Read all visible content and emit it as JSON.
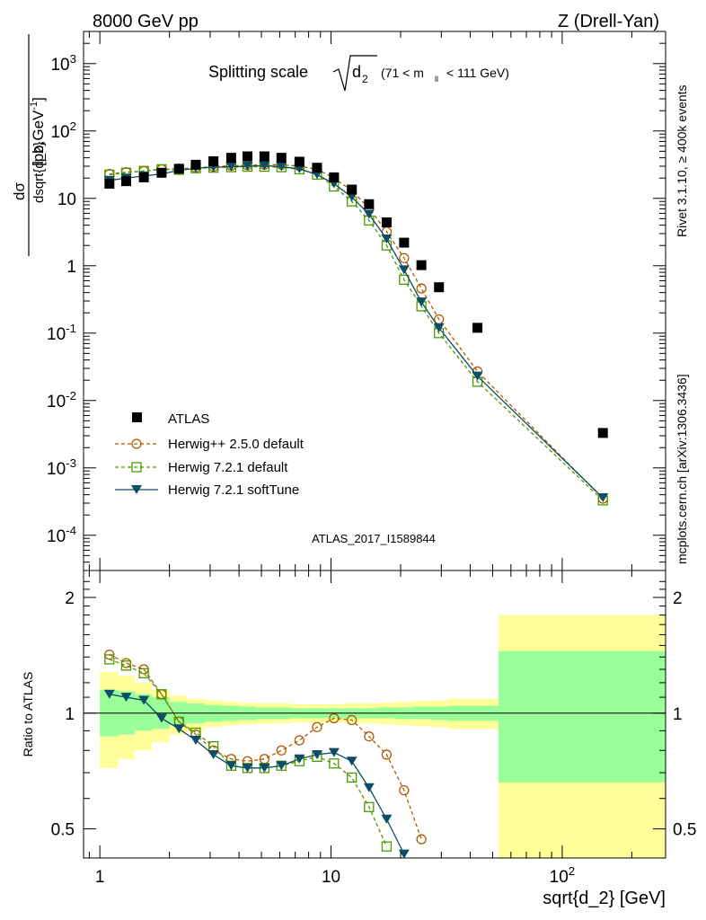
{
  "header": {
    "energy_label": "8000 GeV pp",
    "process_label": "Z (Drell-Yan)",
    "plot_title_prefix": "Splitting scale",
    "plot_title_symbol": "d",
    "plot_title_subscript": "2",
    "plot_title_cut": "(71 < m",
    "plot_title_cut_sub": "ll",
    "plot_title_cut_suffix": "< 111 GeV)",
    "side_label_rivet": "Rivet 3.1.10, ≥ 400k events",
    "side_label_mcplots": "mcplots.cern.ch [arXiv:1306.3436]",
    "analysis_id": "ATLAS_2017_I1589844"
  },
  "colors": {
    "atlas": "#000000",
    "herwigpp": "#b35900",
    "herwig721": "#4d9900",
    "softtune": "#0d4d66",
    "band_yellow": "#ffff99",
    "band_green": "#99ff99",
    "analysis_label": "#999999",
    "side_label": "#808080"
  },
  "legend": {
    "atlas": "ATLAS",
    "herwigpp": "Herwig++ 2.5.0 default",
    "herwig721": "Herwig 7.2.1 default",
    "softtune": "Herwig 7.2.1 softTune"
  },
  "chart_data": [
    {
      "type": "scatter",
      "scale": "log-log",
      "ylabel": "dσ / dsqrt{d_2} [pb,GeV^-1]",
      "xlim": [
        0.85,
        280
      ],
      "ylim": [
        3e-05,
        3000
      ],
      "y_ticks": [
        {
          "v": 0.0001,
          "label": "10^-4"
        },
        {
          "v": 0.001,
          "label": "10^-3"
        },
        {
          "v": 0.01,
          "label": "10^-2"
        },
        {
          "v": 0.1,
          "label": "10^-1"
        },
        {
          "v": 1,
          "label": "1"
        },
        {
          "v": 10,
          "label": "10"
        },
        {
          "v": 100,
          "label": "10^2"
        },
        {
          "v": 1000,
          "label": "10^3"
        }
      ],
      "x": [
        1.1,
        1.3,
        1.55,
        1.85,
        2.2,
        2.6,
        3.1,
        3.7,
        4.35,
        5.15,
        6.1,
        7.3,
        8.7,
        10.3,
        12.3,
        14.6,
        17.4,
        20.7,
        24.6,
        29.3,
        43.0,
        150.0
      ],
      "series": [
        {
          "name": "ATLAS",
          "values": [
            16.5,
            18,
            20.5,
            24,
            27.5,
            31.5,
            35.5,
            40,
            42,
            42,
            40,
            35,
            28.5,
            20.5,
            13.5,
            8.2,
            4.4,
            2.2,
            1.02,
            0.48,
            0.12,
            0.0033
          ]
        },
        {
          "name": "Herwig++ 2.5.0 default",
          "values": [
            23,
            24.5,
            25.5,
            27,
            27.5,
            28.5,
            29.5,
            30.5,
            31,
            31.5,
            31.5,
            30,
            27,
            20,
            13,
            7.2,
            3.2,
            1.3,
            0.46,
            0.16,
            0.027,
            0.00035
          ]
        },
        {
          "name": "Herwig 7.2.1 default",
          "values": [
            22.5,
            24,
            25.5,
            27,
            26.5,
            28,
            28.5,
            29,
            29.5,
            29.5,
            29,
            27,
            22.5,
            15,
            9,
            4.7,
            2.0,
            0.62,
            0.25,
            0.1,
            0.019,
            0.00033
          ]
        },
        {
          "name": "Herwig 7.2.1 softTune",
          "values": [
            18.5,
            20,
            21.5,
            23,
            26,
            28,
            29,
            29.5,
            30,
            30.5,
            29.5,
            27.5,
            22.5,
            16.5,
            10.5,
            5.8,
            2.5,
            0.87,
            0.29,
            0.12,
            0.023,
            0.00036
          ]
        }
      ]
    },
    {
      "type": "line",
      "scale": "log-log",
      "ylabel": "Ratio to ATLAS",
      "xlabel": "sqrt{d_2} [GeV]",
      "xlim": [
        0.85,
        280
      ],
      "ylim": [
        0.42,
        2.35
      ],
      "x_ticks": [
        {
          "v": 1,
          "label": "1"
        },
        {
          "v": 10,
          "label": "10"
        },
        {
          "v": 100,
          "label": "10^2"
        }
      ],
      "y_ticks": [
        {
          "v": 0.5,
          "label": "0.5"
        },
        {
          "v": 1,
          "label": "1"
        },
        {
          "v": 2,
          "label": "2"
        }
      ],
      "band_edges": [
        1.0,
        1.2,
        1.42,
        1.68,
        2.0,
        2.38,
        2.83,
        3.36,
        4.0,
        4.75,
        5.65,
        6.7,
        8.0,
        9.5,
        11.3,
        13.4,
        16.0,
        19.0,
        22.6,
        26.9,
        32.0,
        53.0,
        280.0
      ],
      "band_total": [
        [
          0.72,
          1.28
        ],
        [
          0.76,
          1.25
        ],
        [
          0.8,
          1.2
        ],
        [
          0.84,
          1.15
        ],
        [
          0.88,
          1.11
        ],
        [
          0.9,
          1.09
        ],
        [
          0.92,
          1.08
        ],
        [
          0.93,
          1.07
        ],
        [
          0.935,
          1.065
        ],
        [
          0.94,
          1.06
        ],
        [
          0.94,
          1.06
        ],
        [
          0.945,
          1.055
        ],
        [
          0.945,
          1.055
        ],
        [
          0.945,
          1.055
        ],
        [
          0.945,
          1.06
        ],
        [
          0.94,
          1.06
        ],
        [
          0.935,
          1.065
        ],
        [
          0.93,
          1.07
        ],
        [
          0.925,
          1.075
        ],
        [
          0.92,
          1.08
        ],
        [
          0.91,
          1.09
        ],
        [
          0.38,
          1.8
        ]
      ],
      "band_stat": [
        [
          0.87,
          1.15
        ],
        [
          0.88,
          1.14
        ],
        [
          0.9,
          1.12
        ],
        [
          0.91,
          1.1
        ],
        [
          0.93,
          1.07
        ],
        [
          0.94,
          1.06
        ],
        [
          0.95,
          1.05
        ],
        [
          0.955,
          1.045
        ],
        [
          0.96,
          1.04
        ],
        [
          0.965,
          1.035
        ],
        [
          0.965,
          1.035
        ],
        [
          0.97,
          1.03
        ],
        [
          0.97,
          1.03
        ],
        [
          0.97,
          1.03
        ],
        [
          0.97,
          1.03
        ],
        [
          0.97,
          1.03
        ],
        [
          0.97,
          1.035
        ],
        [
          0.965,
          1.035
        ],
        [
          0.965,
          1.04
        ],
        [
          0.96,
          1.04
        ],
        [
          0.955,
          1.045
        ],
        [
          0.66,
          1.45
        ]
      ],
      "series": [
        {
          "name": "Herwig++ 2.5.0 default",
          "x": [
            1.1,
            1.3,
            1.55,
            1.85,
            2.2,
            2.6,
            3.1,
            3.7,
            4.35,
            5.15,
            6.1,
            7.3,
            8.7,
            10.3,
            12.3,
            14.6,
            17.4,
            20.7,
            24.6
          ],
          "values": [
            1.42,
            1.35,
            1.3,
            1.12,
            0.95,
            0.88,
            0.8,
            0.76,
            0.75,
            0.76,
            0.8,
            0.85,
            0.92,
            0.97,
            0.96,
            0.87,
            0.78,
            0.63,
            0.47
          ]
        },
        {
          "name": "Herwig 7.2.1 default",
          "x": [
            1.1,
            1.3,
            1.55,
            1.85,
            2.2,
            2.6,
            3.1,
            3.7,
            4.35,
            5.15,
            6.1,
            7.3,
            8.7,
            10.3,
            12.3,
            14.6,
            17.4
          ],
          "values": [
            1.38,
            1.33,
            1.27,
            1.12,
            0.95,
            0.89,
            0.82,
            0.73,
            0.72,
            0.72,
            0.73,
            0.75,
            0.77,
            0.74,
            0.68,
            0.57,
            0.45
          ]
        },
        {
          "name": "Herwig 7.2.1 softTune",
          "x": [
            1.1,
            1.3,
            1.55,
            1.85,
            2.2,
            2.6,
            3.1,
            3.7,
            4.35,
            5.15,
            6.1,
            7.3,
            8.7,
            10.3,
            12.3,
            14.6,
            17.4,
            20.7
          ],
          "values": [
            1.12,
            1.1,
            1.08,
            0.97,
            0.91,
            0.85,
            0.78,
            0.73,
            0.72,
            0.72,
            0.73,
            0.76,
            0.78,
            0.79,
            0.75,
            0.64,
            0.53,
            0.43
          ]
        }
      ]
    }
  ]
}
